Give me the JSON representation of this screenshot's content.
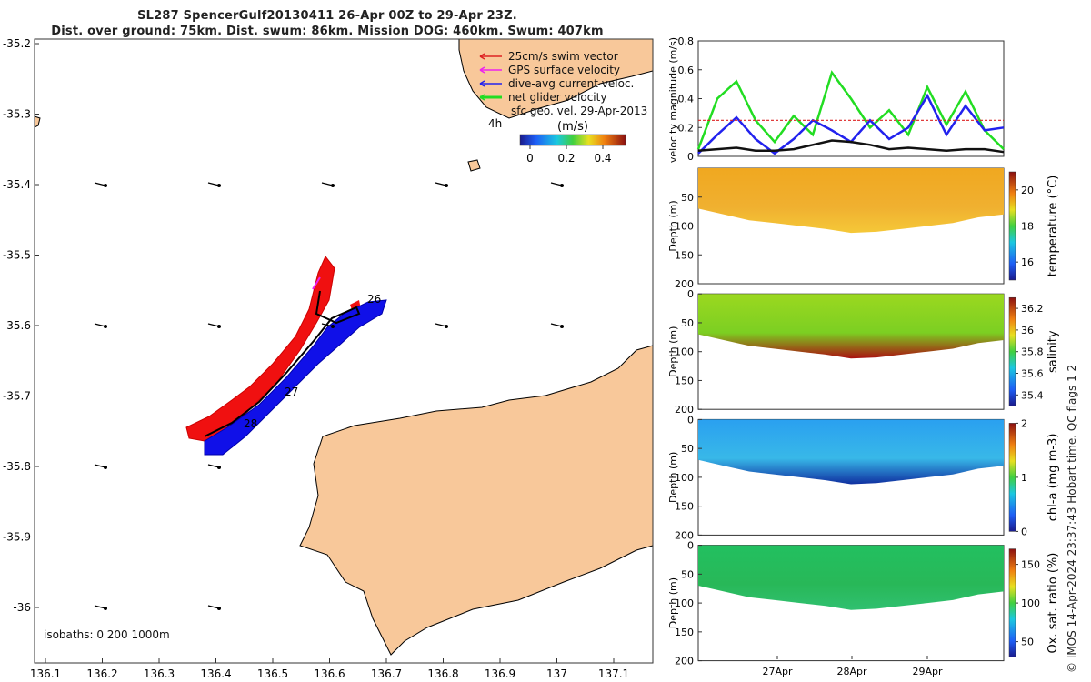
{
  "header": {
    "title_line1": "SL287 SpencerGulf20130411 26-Apr 00Z to 29-Apr 23Z.",
    "title_line2": "Dist. over ground: 75km. Dist. swum: 86km. Mission DOG: 460km. Swum: 407km"
  },
  "map": {
    "lon_ticks": [
      "136.1",
      "136.2",
      "136.3",
      "136.4",
      "136.5",
      "136.6",
      "136.7",
      "136.8",
      "136.9",
      "137",
      "137.1"
    ],
    "lat_ticks": [
      "-35.2",
      "-35.3",
      "-35.4",
      "-35.5",
      "-35.6",
      "-35.7",
      "-35.8",
      "-35.9",
      "-36"
    ],
    "legend": [
      {
        "label": "25cm/s swim vector",
        "color": "#dd2222"
      },
      {
        "label": "GPS surface velocity",
        "color": "#ee22ee"
      },
      {
        "label": "dive-avg current veloc.",
        "color": "#2222ee"
      },
      {
        "label": "net glider velocity",
        "color": "#22dd22"
      },
      {
        "label": "sfc geo. vel. 29-Apr-2013",
        "color": "#000000"
      }
    ],
    "colorbar_unit": "(m/s)",
    "colorbar_ticks": [
      "0",
      "0.2",
      "0.4"
    ],
    "isobaths": "isobaths: 0   200  1000m",
    "day_labels": [
      "4h",
      "26",
      "27",
      "28"
    ],
    "land_color": "#f8c89a"
  },
  "chart_data": [
    {
      "type": "line",
      "ylabel": "velocity magnitude (m/s)",
      "ylim": [
        0,
        0.8
      ],
      "yticks": [
        "0",
        "0.2",
        "0.4",
        "0.6",
        "0.8"
      ],
      "x": [
        0,
        0.25,
        0.5,
        0.75,
        1,
        1.25,
        1.5,
        1.75,
        2,
        2.25,
        2.5,
        2.75,
        3,
        3.25,
        3.5,
        3.75,
        4
      ],
      "series": [
        {
          "color": "#22dd22",
          "values": [
            0.05,
            0.4,
            0.52,
            0.25,
            0.1,
            0.28,
            0.15,
            0.58,
            0.4,
            0.2,
            0.32,
            0.15,
            0.48,
            0.22,
            0.45,
            0.18,
            0.05
          ]
        },
        {
          "color": "#2222ee",
          "values": [
            0.02,
            0.15,
            0.27,
            0.12,
            0.02,
            0.12,
            0.25,
            0.18,
            0.1,
            0.25,
            0.12,
            0.2,
            0.42,
            0.15,
            0.35,
            0.18,
            0.2
          ]
        },
        {
          "color": "#dd2222",
          "values": [
            0.25,
            0.25,
            0.25,
            0.25,
            0.25,
            0.25,
            0.25,
            0.25,
            0.25,
            0.25,
            0.25,
            0.25,
            0.25,
            0.25,
            0.25,
            0.25,
            0.25
          ]
        },
        {
          "color": "#111111",
          "values": [
            0.04,
            0.05,
            0.06,
            0.04,
            0.04,
            0.05,
            0.08,
            0.11,
            0.1,
            0.08,
            0.05,
            0.06,
            0.05,
            0.04,
            0.05,
            0.05,
            0.03
          ]
        }
      ]
    },
    {
      "type": "heatmap",
      "ylabel": "Depth (m)",
      "clabel": "temperature (°C)",
      "ylim": [
        0,
        200
      ],
      "yticks": [
        "50",
        "100",
        "150",
        "200"
      ],
      "cticks": [
        "16",
        "18",
        "20"
      ],
      "crange": [
        15,
        21
      ],
      "bottom_depth_m": [
        70,
        80,
        90,
        95,
        100,
        105,
        112,
        110,
        105,
        100,
        95,
        85,
        80
      ]
    },
    {
      "type": "heatmap",
      "ylabel": "Depth (m)",
      "clabel": "salinity",
      "ylim": [
        0,
        200
      ],
      "yticks": [
        "0",
        "50",
        "100",
        "150",
        "200"
      ],
      "cticks": [
        "35.4",
        "35.6",
        "35.8",
        "36",
        "36.2"
      ],
      "crange": [
        35.3,
        36.3
      ],
      "bottom_depth_m": [
        70,
        80,
        90,
        95,
        100,
        105,
        112,
        110,
        105,
        100,
        95,
        85,
        80
      ]
    },
    {
      "type": "heatmap",
      "ylabel": "Depth (m)",
      "clabel": "chl-a (mg m-3)",
      "ylim": [
        0,
        200
      ],
      "yticks": [
        "0",
        "50",
        "100",
        "150",
        "200"
      ],
      "cticks": [
        "0",
        "1",
        "2"
      ],
      "crange": [
        0,
        2
      ],
      "bottom_depth_m": [
        70,
        80,
        90,
        95,
        100,
        105,
        112,
        110,
        105,
        100,
        95,
        85,
        80
      ]
    },
    {
      "type": "heatmap",
      "ylabel": "Depth (m)",
      "clabel": "Ox. sat. ratio (%)",
      "ylim": [
        0,
        200
      ],
      "yticks": [
        "0",
        "50",
        "100",
        "150",
        "200"
      ],
      "cticks": [
        "50",
        "100",
        "150"
      ],
      "crange": [
        30,
        170
      ],
      "bottom_depth_m": [
        70,
        80,
        90,
        95,
        100,
        105,
        112,
        110,
        105,
        100,
        95,
        85,
        80
      ]
    }
  ],
  "time_axis": {
    "labels": [
      "27Apr",
      "28Apr",
      "29Apr"
    ]
  },
  "credit": "© IMOS 14-Apr-2024 23:37:43 Hobart time. QC flags 1  2"
}
